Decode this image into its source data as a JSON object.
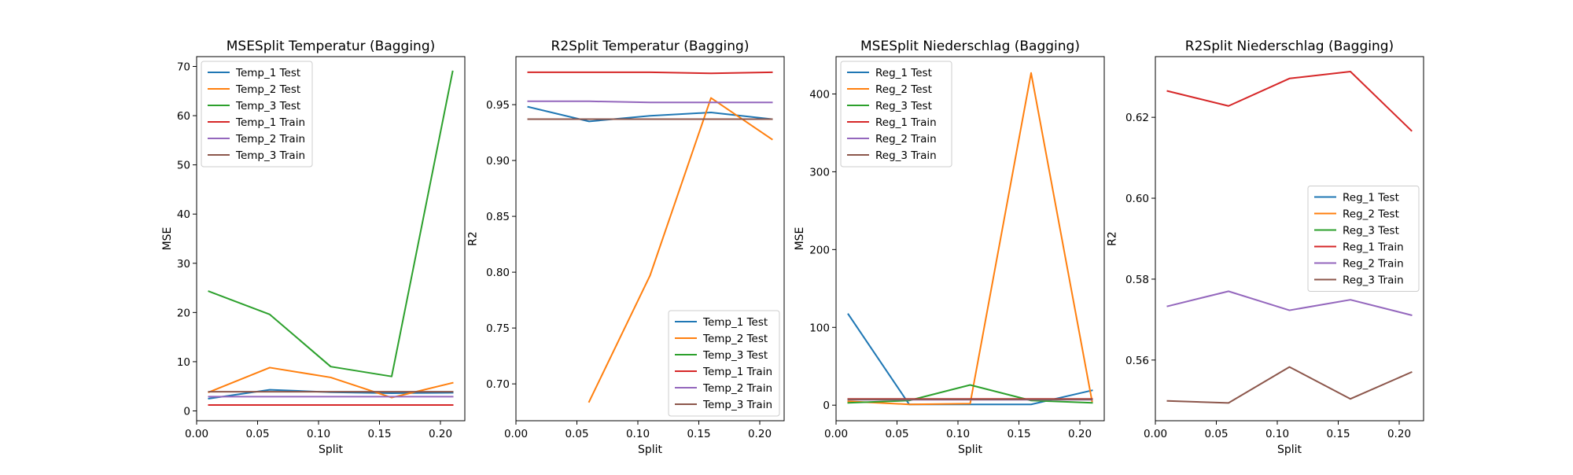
{
  "figure": {
    "background": "#ffffff"
  },
  "chart_data": [
    {
      "type": "line",
      "title": "MSESplit Temperatur (Bagging)",
      "xlabel": "Split",
      "ylabel": "MSE",
      "xlim": [
        0.0,
        0.22
      ],
      "ylim": [
        -2,
        72
      ],
      "xticks": [
        0.0,
        0.05,
        0.1,
        0.15,
        0.2
      ],
      "xtick_labels": [
        "0.00",
        "0.05",
        "0.10",
        "0.15",
        "0.20"
      ],
      "yticks": [
        0,
        10,
        20,
        30,
        40,
        50,
        60,
        70
      ],
      "ytick_labels": [
        "0",
        "10",
        "20",
        "30",
        "40",
        "50",
        "60",
        "70"
      ],
      "legend_position": "upper-left",
      "grid": false,
      "x": [
        0.01,
        0.06,
        0.11,
        0.16,
        0.21
      ],
      "series": [
        {
          "name": "Temp_1 Test",
          "color": "#1f77b4",
          "values": [
            2.5,
            4.3,
            3.8,
            3.6,
            3.7
          ]
        },
        {
          "name": "Temp_2 Test",
          "color": "#ff7f0e",
          "values": [
            3.8,
            8.8,
            6.8,
            2.7,
            5.7
          ]
        },
        {
          "name": "Temp_3 Test",
          "color": "#2ca02c",
          "values": [
            24.3,
            19.6,
            9.0,
            7.0,
            69.0
          ]
        },
        {
          "name": "Temp_1 Train",
          "color": "#d62728",
          "values": [
            1.2,
            1.2,
            1.2,
            1.2,
            1.2
          ]
        },
        {
          "name": "Temp_2 Train",
          "color": "#9467bd",
          "values": [
            2.9,
            2.9,
            2.9,
            2.9,
            2.9
          ]
        },
        {
          "name": "Temp_3 Train",
          "color": "#8c564b",
          "values": [
            3.9,
            3.9,
            3.9,
            3.9,
            3.9
          ]
        }
      ]
    },
    {
      "type": "line",
      "title": "R2Split Temperatur (Bagging)",
      "xlabel": "Split",
      "ylabel": "R2",
      "xlim": [
        0.0,
        0.22
      ],
      "ylim": [
        0.667,
        0.993
      ],
      "xticks": [
        0.0,
        0.05,
        0.1,
        0.15,
        0.2
      ],
      "xtick_labels": [
        "0.00",
        "0.05",
        "0.10",
        "0.15",
        "0.20"
      ],
      "yticks": [
        0.7,
        0.75,
        0.8,
        0.85,
        0.9,
        0.95
      ],
      "ytick_labels": [
        "0.70",
        "0.75",
        "0.80",
        "0.85",
        "0.90",
        "0.95"
      ],
      "legend_position": "lower-right",
      "grid": false,
      "x": [
        0.01,
        0.06,
        0.11,
        0.16,
        0.21
      ],
      "series": [
        {
          "name": "Temp_1 Test",
          "color": "#1f77b4",
          "values": [
            0.948,
            0.935,
            0.94,
            0.943,
            0.937
          ]
        },
        {
          "name": "Temp_2 Test",
          "color": "#ff7f0e",
          "values": [
            null,
            0.684,
            0.797,
            0.956,
            0.919
          ]
        },
        {
          "name": "Temp_3 Test",
          "color": "#2ca02c",
          "values": [
            null,
            null,
            null,
            null,
            null
          ]
        },
        {
          "name": "Temp_1 Train",
          "color": "#d62728",
          "values": [
            0.979,
            0.979,
            0.979,
            0.978,
            0.979
          ]
        },
        {
          "name": "Temp_2 Train",
          "color": "#9467bd",
          "values": [
            0.953,
            0.953,
            0.952,
            0.952,
            0.952
          ]
        },
        {
          "name": "Temp_3 Train",
          "color": "#8c564b",
          "values": [
            0.937,
            0.937,
            0.937,
            0.937,
            0.937
          ]
        }
      ]
    },
    {
      "type": "line",
      "title": "MSESplit Niederschlag (Bagging)",
      "xlabel": "Split",
      "ylabel": "MSE",
      "xlim": [
        0.0,
        0.22
      ],
      "ylim": [
        -20,
        448
      ],
      "xticks": [
        0.0,
        0.05,
        0.1,
        0.15,
        0.2
      ],
      "xtick_labels": [
        "0.00",
        "0.05",
        "0.10",
        "0.15",
        "0.20"
      ],
      "yticks": [
        0,
        100,
        200,
        300,
        400
      ],
      "ytick_labels": [
        "0",
        "100",
        "200",
        "300",
        "400"
      ],
      "legend_position": "upper-left",
      "grid": false,
      "x": [
        0.01,
        0.06,
        0.11,
        0.16,
        0.21
      ],
      "series": [
        {
          "name": "Reg_1 Test",
          "color": "#1f77b4",
          "values": [
            117,
            1,
            1,
            1,
            19
          ]
        },
        {
          "name": "Reg_2 Test",
          "color": "#ff7f0e",
          "values": [
            5,
            1,
            2,
            427,
            5
          ]
        },
        {
          "name": "Reg_3 Test",
          "color": "#2ca02c",
          "values": [
            3,
            6,
            26,
            6,
            3
          ]
        },
        {
          "name": "Reg_1 Train",
          "color": "#d62728",
          "values": [
            8,
            8,
            8,
            8,
            8
          ]
        },
        {
          "name": "Reg_2 Train",
          "color": "#9467bd",
          "values": [
            7,
            7,
            7,
            7,
            7
          ]
        },
        {
          "name": "Reg_3 Train",
          "color": "#8c564b",
          "values": [
            7.5,
            7.5,
            7.5,
            7.5,
            7.5
          ]
        }
      ]
    },
    {
      "type": "line",
      "title": "R2Split Niederschlag (Bagging)",
      "xlabel": "Split",
      "ylabel": "R2",
      "xlim": [
        0.0,
        0.22
      ],
      "ylim": [
        0.545,
        0.635
      ],
      "xticks": [
        0.0,
        0.05,
        0.1,
        0.15,
        0.2
      ],
      "xtick_labels": [
        "0.00",
        "0.05",
        "0.10",
        "0.15",
        "0.20"
      ],
      "yticks": [
        0.56,
        0.58,
        0.6,
        0.62
      ],
      "ytick_labels": [
        "0.56",
        "0.58",
        "0.60",
        "0.62"
      ],
      "legend_position": "center-right",
      "grid": false,
      "x": [
        0.01,
        0.06,
        0.11,
        0.16,
        0.21
      ],
      "series": [
        {
          "name": "Reg_1 Test",
          "color": "#1f77b4",
          "values": [
            null,
            null,
            null,
            null,
            null
          ]
        },
        {
          "name": "Reg_2 Test",
          "color": "#ff7f0e",
          "values": [
            null,
            null,
            null,
            null,
            null
          ]
        },
        {
          "name": "Reg_3 Test",
          "color": "#2ca02c",
          "values": [
            null,
            null,
            null,
            null,
            null
          ]
        },
        {
          "name": "Reg_1 Train",
          "color": "#d62728",
          "values": [
            0.6265,
            0.6228,
            0.6296,
            0.6313,
            0.6167
          ]
        },
        {
          "name": "Reg_2 Train",
          "color": "#9467bd",
          "values": [
            0.5733,
            0.577,
            0.5723,
            0.5749,
            0.5711
          ]
        },
        {
          "name": "Reg_3 Train",
          "color": "#8c564b",
          "values": [
            0.5499,
            0.5494,
            0.5583,
            0.5504,
            0.557
          ]
        }
      ]
    }
  ]
}
